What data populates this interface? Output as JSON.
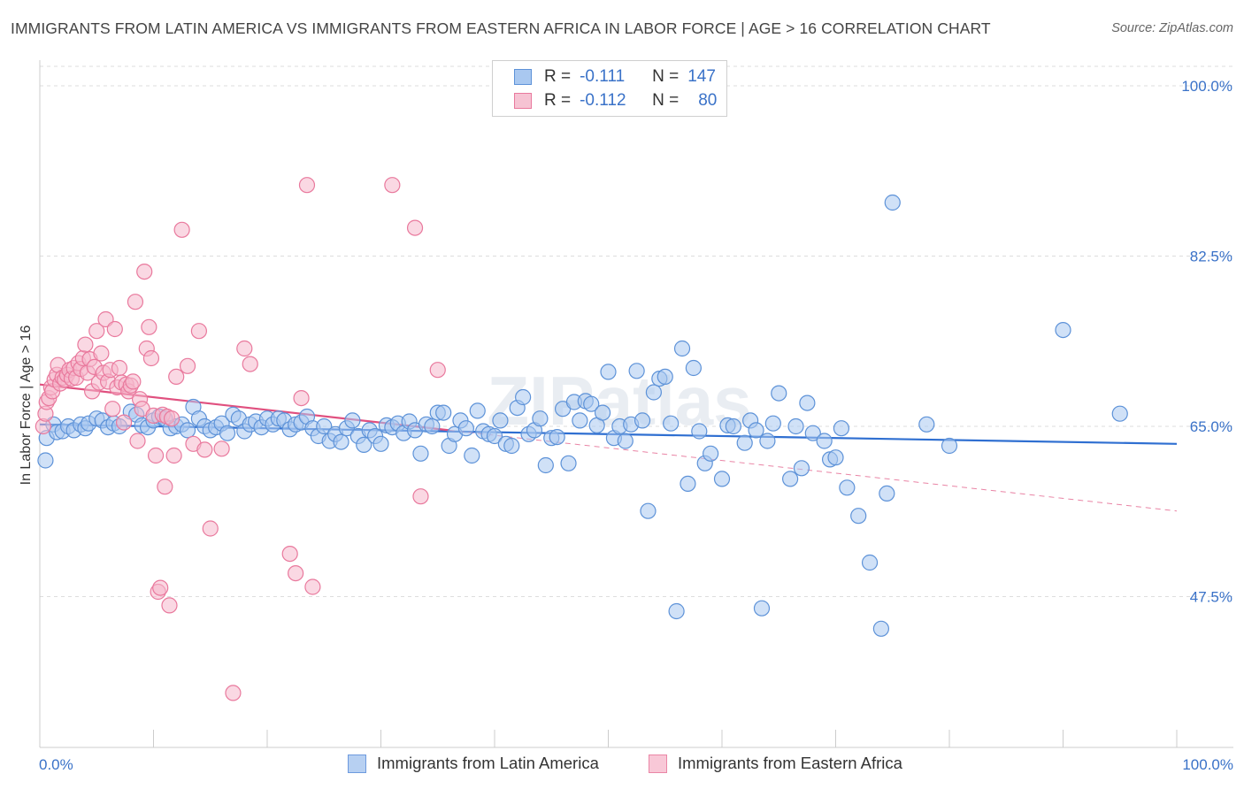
{
  "title": "IMMIGRANTS FROM LATIN AMERICA VS IMMIGRANTS FROM EASTERN AFRICA IN LABOR FORCE | AGE > 16 CORRELATION CHART",
  "source": "Source: ZipAtlas.com",
  "watermark": "ZIPatlas",
  "legend": {
    "r_label": "R =",
    "n_label": "N =",
    "rows": [
      {
        "r": "-0.111",
        "n": "147"
      },
      {
        "r": "-0.112",
        "n": "80"
      }
    ]
  },
  "colors": {
    "blue_fill": "#a9c8f0",
    "blue_stroke": "#5d92d8",
    "blue_line": "#2f6fd1",
    "pink_fill": "#f6b8cc",
    "pink_stroke": "#e9799d",
    "pink_line": "#e0507f",
    "tick_label": "#3a72c8"
  },
  "chart_data": {
    "type": "scatter",
    "title": "IMMIGRANTS FROM LATIN AMERICA VS IMMIGRANTS FROM EASTERN AFRICA IN LABOR FORCE | AGE > 16 CORRELATION CHART",
    "xlabel": "",
    "ylabel": "In Labor Force | Age > 16",
    "xlim": [
      0,
      100
    ],
    "ylim": [
      32,
      102
    ],
    "x_ticks": [
      "0.0%",
      "100.0%"
    ],
    "y_ticks": [
      {
        "value": 100.0,
        "label": "100.0%"
      },
      {
        "value": 82.5,
        "label": "82.5%"
      },
      {
        "value": 65.0,
        "label": "65.0%"
      },
      {
        "value": 47.5,
        "label": "47.5%"
      }
    ],
    "grid": true,
    "legend_position": "top-center",
    "series": [
      {
        "name": "Immigrants from Latin America",
        "color": "#a9c8f0",
        "points": [
          [
            0.5,
            61.5
          ],
          [
            0.6,
            63.8
          ],
          [
            1.2,
            65.2
          ],
          [
            1.5,
            64.4
          ],
          [
            2.0,
            64.5
          ],
          [
            2.5,
            65.0
          ],
          [
            3.0,
            64.6
          ],
          [
            3.6,
            65.2
          ],
          [
            4.0,
            64.8
          ],
          [
            4.3,
            65.3
          ],
          [
            5.0,
            65.8
          ],
          [
            5.5,
            65.6
          ],
          [
            6.0,
            64.9
          ],
          [
            6.5,
            65.3
          ],
          [
            7.0,
            65.0
          ],
          [
            8.0,
            66.5
          ],
          [
            8.5,
            66.2
          ],
          [
            9.0,
            65.1
          ],
          [
            9.5,
            64.9
          ],
          [
            10.0,
            65.6
          ],
          [
            10.5,
            66.0
          ],
          [
            11.0,
            65.8
          ],
          [
            11.5,
            64.8
          ],
          [
            12.0,
            65.0
          ],
          [
            12.5,
            65.2
          ],
          [
            13.0,
            64.6
          ],
          [
            13.5,
            67.0
          ],
          [
            14.0,
            65.8
          ],
          [
            14.5,
            65.0
          ],
          [
            15.0,
            64.6
          ],
          [
            15.5,
            64.9
          ],
          [
            16.0,
            65.3
          ],
          [
            16.5,
            64.3
          ],
          [
            17.0,
            66.2
          ],
          [
            17.5,
            65.8
          ],
          [
            18.0,
            64.5
          ],
          [
            18.5,
            65.2
          ],
          [
            19.0,
            65.5
          ],
          [
            19.5,
            64.9
          ],
          [
            20.0,
            65.8
          ],
          [
            20.5,
            65.2
          ],
          [
            21.0,
            65.8
          ],
          [
            21.5,
            65.6
          ],
          [
            22.0,
            64.7
          ],
          [
            22.5,
            65.2
          ],
          [
            23.0,
            65.4
          ],
          [
            23.5,
            66.0
          ],
          [
            24.0,
            64.8
          ],
          [
            24.5,
            64.0
          ],
          [
            25.0,
            65.0
          ],
          [
            25.5,
            63.5
          ],
          [
            26.0,
            64.2
          ],
          [
            26.5,
            63.4
          ],
          [
            27.0,
            64.8
          ],
          [
            27.5,
            65.6
          ],
          [
            28.0,
            64.0
          ],
          [
            28.5,
            63.1
          ],
          [
            29.0,
            64.6
          ],
          [
            29.5,
            64.0
          ],
          [
            30.0,
            63.2
          ],
          [
            30.5,
            65.1
          ],
          [
            31.0,
            64.9
          ],
          [
            31.5,
            65.3
          ],
          [
            32.0,
            64.3
          ],
          [
            32.5,
            65.5
          ],
          [
            33.0,
            64.6
          ],
          [
            33.5,
            62.2
          ],
          [
            34.0,
            65.2
          ],
          [
            34.5,
            65.0
          ],
          [
            35.0,
            66.4
          ],
          [
            35.5,
            66.4
          ],
          [
            36.0,
            63.0
          ],
          [
            36.5,
            64.2
          ],
          [
            37.0,
            65.6
          ],
          [
            37.5,
            64.8
          ],
          [
            38.0,
            62.0
          ],
          [
            38.5,
            66.6
          ],
          [
            39.0,
            64.5
          ],
          [
            39.5,
            64.2
          ],
          [
            40.0,
            64.0
          ],
          [
            40.5,
            65.6
          ],
          [
            41.0,
            63.2
          ],
          [
            41.5,
            63.0
          ],
          [
            42.0,
            66.9
          ],
          [
            42.5,
            68.0
          ],
          [
            43.0,
            64.2
          ],
          [
            43.5,
            64.6
          ],
          [
            44.0,
            65.8
          ],
          [
            44.5,
            61.0
          ],
          [
            45.0,
            63.8
          ],
          [
            45.5,
            63.9
          ],
          [
            46.0,
            66.8
          ],
          [
            46.5,
            61.2
          ],
          [
            47.0,
            67.5
          ],
          [
            47.5,
            65.6
          ],
          [
            48.0,
            67.6
          ],
          [
            48.5,
            67.3
          ],
          [
            49.0,
            65.1
          ],
          [
            49.5,
            66.4
          ],
          [
            50.0,
            70.6
          ],
          [
            50.5,
            63.8
          ],
          [
            51.0,
            65.0
          ],
          [
            51.5,
            63.5
          ],
          [
            52.0,
            65.2
          ],
          [
            52.5,
            70.7
          ],
          [
            53.0,
            65.6
          ],
          [
            53.5,
            56.3
          ],
          [
            54.0,
            68.5
          ],
          [
            54.5,
            69.9
          ],
          [
            55.0,
            70.1
          ],
          [
            55.5,
            65.3
          ],
          [
            56.0,
            46.0
          ],
          [
            56.5,
            73.0
          ],
          [
            57.0,
            59.1
          ],
          [
            57.5,
            71.0
          ],
          [
            58.0,
            64.5
          ],
          [
            58.5,
            61.2
          ],
          [
            59.0,
            62.2
          ],
          [
            60.0,
            59.6
          ],
          [
            60.5,
            65.1
          ],
          [
            61.0,
            65.0
          ],
          [
            62.0,
            63.3
          ],
          [
            62.5,
            65.6
          ],
          [
            63.0,
            64.6
          ],
          [
            63.5,
            46.3
          ],
          [
            64.0,
            63.5
          ],
          [
            64.5,
            65.3
          ],
          [
            65.0,
            68.4
          ],
          [
            66.0,
            59.6
          ],
          [
            66.5,
            65.0
          ],
          [
            67.0,
            60.7
          ],
          [
            67.5,
            67.4
          ],
          [
            68.0,
            64.3
          ],
          [
            69.0,
            63.5
          ],
          [
            69.5,
            61.6
          ],
          [
            70.0,
            61.8
          ],
          [
            70.5,
            64.8
          ],
          [
            71.0,
            58.7
          ],
          [
            72.0,
            55.8
          ],
          [
            73.0,
            51.0
          ],
          [
            74.0,
            44.2
          ],
          [
            74.5,
            58.1
          ],
          [
            75.0,
            88.0
          ],
          [
            78.0,
            65.2
          ],
          [
            80.0,
            63.0
          ],
          [
            90.0,
            74.9
          ],
          [
            95.0,
            66.3
          ]
        ]
      },
      {
        "name": "Immigrants from Eastern Africa",
        "color": "#f6b8cc",
        "points": [
          [
            0.3,
            65.0
          ],
          [
            0.5,
            66.3
          ],
          [
            0.6,
            67.5
          ],
          [
            0.8,
            67.9
          ],
          [
            1.0,
            69.0
          ],
          [
            1.1,
            68.6
          ],
          [
            1.3,
            69.8
          ],
          [
            1.5,
            70.3
          ],
          [
            1.6,
            71.3
          ],
          [
            1.8,
            69.4
          ],
          [
            2.0,
            70.0
          ],
          [
            2.2,
            69.8
          ],
          [
            2.4,
            70.3
          ],
          [
            2.6,
            70.8
          ],
          [
            2.8,
            69.9
          ],
          [
            3.0,
            71.0
          ],
          [
            3.2,
            70.0
          ],
          [
            3.4,
            71.5
          ],
          [
            3.6,
            70.9
          ],
          [
            3.8,
            72.0
          ],
          [
            4.0,
            73.4
          ],
          [
            4.2,
            70.5
          ],
          [
            4.4,
            71.9
          ],
          [
            4.6,
            68.6
          ],
          [
            4.8,
            71.1
          ],
          [
            5.0,
            74.8
          ],
          [
            5.2,
            69.5
          ],
          [
            5.4,
            72.5
          ],
          [
            5.6,
            70.5
          ],
          [
            5.8,
            76.0
          ],
          [
            6.0,
            69.6
          ],
          [
            6.2,
            70.8
          ],
          [
            6.4,
            66.8
          ],
          [
            6.6,
            75.0
          ],
          [
            6.8,
            69.0
          ],
          [
            7.0,
            71.0
          ],
          [
            7.2,
            69.5
          ],
          [
            7.4,
            65.4
          ],
          [
            7.6,
            69.3
          ],
          [
            7.8,
            68.6
          ],
          [
            8.0,
            69.2
          ],
          [
            8.2,
            69.6
          ],
          [
            8.4,
            77.8
          ],
          [
            8.6,
            63.5
          ],
          [
            8.8,
            67.8
          ],
          [
            9.0,
            66.8
          ],
          [
            9.2,
            80.9
          ],
          [
            9.4,
            73.0
          ],
          [
            9.6,
            75.2
          ],
          [
            9.8,
            72.0
          ],
          [
            10.0,
            66.1
          ],
          [
            10.2,
            62.0
          ],
          [
            10.4,
            48.0
          ],
          [
            10.6,
            48.4
          ],
          [
            10.8,
            66.2
          ],
          [
            11.0,
            58.8
          ],
          [
            11.2,
            66.0
          ],
          [
            11.4,
            46.6
          ],
          [
            11.6,
            65.8
          ],
          [
            11.8,
            62.0
          ],
          [
            12.0,
            70.1
          ],
          [
            12.5,
            85.2
          ],
          [
            13.0,
            71.2
          ],
          [
            13.5,
            63.2
          ],
          [
            14.0,
            74.8
          ],
          [
            14.5,
            62.6
          ],
          [
            15.0,
            54.5
          ],
          [
            16.0,
            62.7
          ],
          [
            17.0,
            37.6
          ],
          [
            18.0,
            73.0
          ],
          [
            18.5,
            71.4
          ],
          [
            22.0,
            51.9
          ],
          [
            22.5,
            49.9
          ],
          [
            23.0,
            67.9
          ],
          [
            23.5,
            89.8
          ],
          [
            24.0,
            48.5
          ],
          [
            31.0,
            89.8
          ],
          [
            33.0,
            85.4
          ],
          [
            33.5,
            57.8
          ],
          [
            35.0,
            70.8
          ]
        ]
      }
    ],
    "trend_lines": [
      {
        "series": "Immigrants from Latin America",
        "x": [
          0,
          100
        ],
        "y": [
          65.2,
          63.2
        ],
        "style": "solid"
      },
      {
        "series": "Immigrants from Eastern Africa",
        "x": [
          0,
          36
        ],
        "y": [
          69.3,
          64.6
        ],
        "style": "solid"
      },
      {
        "series": "Immigrants from Eastern Africa",
        "x": [
          36,
          100
        ],
        "y": [
          64.6,
          56.3
        ],
        "style": "dashed"
      }
    ]
  }
}
